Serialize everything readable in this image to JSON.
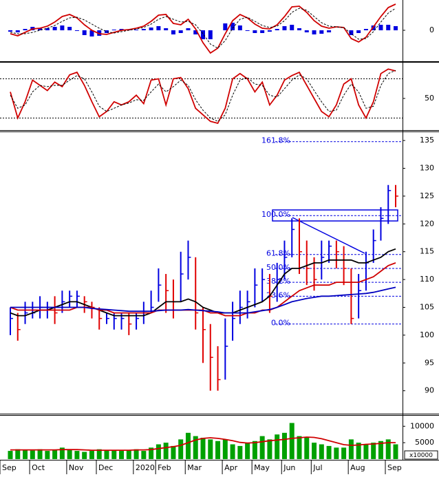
{
  "chart_data": [
    {
      "type": "macd",
      "ylim": [
        -4.4,
        4.4
      ],
      "yticks": [
        0
      ],
      "series": [
        {
          "role": "line",
          "color": "#d00000",
          "style": "solid",
          "values": [
            -0.5,
            -0.8,
            -0.3,
            0.2,
            0.3,
            0.6,
            1.2,
            2.0,
            2.3,
            1.8,
            0.8,
            0.0,
            -0.5,
            -0.6,
            -0.3,
            0.0,
            0.1,
            0.3,
            0.6,
            1.3,
            2.2,
            2.3,
            1.0,
            0.8,
            1.6,
            0.2,
            -1.8,
            -3.3,
            -2.6,
            -0.5,
            1.4,
            2.3,
            1.8,
            0.9,
            0.3,
            0.2,
            0.8,
            2.0,
            3.4,
            3.5,
            2.6,
            1.4,
            0.6,
            0.3,
            0.5,
            0.4,
            -1.2,
            -1.7,
            -1.0,
            0.5,
            2.0,
            3.3,
            3.8
          ]
        },
        {
          "role": "line",
          "color": "#000000",
          "style": "dashed",
          "values": [
            -0.3,
            -0.5,
            -0.5,
            -0.3,
            0.0,
            0.3,
            0.7,
            1.3,
            1.8,
            1.9,
            1.5,
            0.9,
            0.3,
            -0.2,
            -0.4,
            -0.2,
            0.0,
            0.2,
            0.4,
            0.9,
            1.6,
            2.0,
            1.6,
            1.2,
            1.3,
            0.8,
            -0.5,
            -2.0,
            -2.6,
            -1.5,
            0.3,
            1.6,
            1.9,
            1.3,
            0.7,
            0.4,
            0.6,
            1.4,
            2.6,
            3.2,
            2.9,
            2.0,
            1.1,
            0.6,
            0.5,
            0.4,
            -0.5,
            -1.3,
            -1.2,
            -0.2,
            1.2,
            2.5,
            3.2
          ]
        },
        {
          "role": "bar",
          "color": "#0000e0",
          "style": "solid",
          "values": [
            -0.2,
            -0.3,
            0.2,
            0.5,
            0.3,
            0.3,
            0.5,
            0.7,
            0.5,
            -0.1,
            -0.7,
            -0.9,
            -0.8,
            -0.4,
            0.1,
            0.2,
            0.1,
            0.1,
            0.2,
            0.4,
            0.6,
            0.3,
            -0.6,
            -0.4,
            0.3,
            -0.6,
            -1.3,
            -1.3,
            0.0,
            1.0,
            1.1,
            0.7,
            -0.1,
            -0.4,
            -0.4,
            -0.2,
            0.2,
            0.6,
            0.8,
            0.3,
            -0.3,
            -0.6,
            -0.5,
            -0.3,
            0.0,
            0.0,
            -0.7,
            -0.4,
            0.2,
            0.7,
            0.8,
            0.8,
            0.6
          ]
        }
      ]
    },
    {
      "type": "stochastic",
      "ylim": [
        3.7,
        103.7
      ],
      "yticks": [
        50
      ],
      "levels": [
        20,
        80
      ],
      "series": [
        {
          "role": "line",
          "color": "#d00000",
          "style": "solid",
          "values": [
            60,
            20,
            45,
            78,
            70,
            62,
            75,
            68,
            86,
            90,
            70,
            45,
            22,
            30,
            45,
            40,
            45,
            55,
            42,
            78,
            80,
            40,
            80,
            82,
            65,
            35,
            25,
            15,
            12,
            35,
            80,
            88,
            80,
            60,
            75,
            40,
            55,
            78,
            85,
            90,
            70,
            50,
            30,
            22,
            40,
            72,
            80,
            40,
            20,
            45,
            88,
            95,
            92
          ]
        },
        {
          "role": "line",
          "color": "#000000",
          "style": "dashed",
          "values": [
            55,
            35,
            40,
            60,
            70,
            68,
            70,
            70,
            78,
            85,
            80,
            60,
            38,
            30,
            35,
            40,
            43,
            48,
            47,
            60,
            72,
            60,
            68,
            78,
            70,
            48,
            32,
            20,
            15,
            25,
            55,
            78,
            82,
            72,
            70,
            55,
            52,
            65,
            78,
            86,
            80,
            62,
            45,
            30,
            32,
            55,
            72,
            60,
            35,
            38,
            70,
            88,
            93
          ]
        }
      ]
    },
    {
      "type": "ohlc",
      "ylim": [
        86,
        136.5
      ],
      "yticks": [
        90,
        95,
        100,
        105,
        110,
        115,
        120,
        125,
        130,
        135
      ],
      "up_color": "#0000e0",
      "down_color": "#e00000",
      "high": [
        105,
        104,
        106,
        106,
        107,
        106,
        107,
        108,
        108,
        108,
        107,
        106,
        105,
        104,
        104,
        104,
        104,
        104,
        106,
        108,
        112,
        111,
        110,
        115,
        117,
        114,
        105,
        102,
        98,
        103,
        106,
        108,
        108,
        112,
        112,
        111,
        113,
        117,
        121,
        121,
        117,
        114,
        117,
        117,
        117,
        116,
        112,
        111,
        115,
        119,
        123,
        127,
        127
      ],
      "low": [
        100,
        99,
        102,
        103,
        103,
        103,
        102,
        104,
        105,
        105,
        104,
        103,
        101,
        102,
        101,
        101,
        100,
        101,
        102,
        104,
        106,
        104,
        103,
        106,
        110,
        101,
        95,
        90,
        90,
        92,
        99,
        102,
        103,
        105,
        106,
        104,
        106,
        110,
        114,
        111,
        109,
        108,
        110,
        113,
        112,
        109,
        102,
        103,
        108,
        113,
        117,
        120,
        123
      ],
      "close": [
        103,
        101,
        104,
        104,
        105,
        105,
        104,
        106,
        107,
        107,
        106,
        105,
        103,
        103,
        103,
        103,
        102,
        103,
        104,
        105,
        109,
        108,
        106,
        111,
        114,
        104,
        101,
        96,
        92,
        98,
        103,
        105,
        106,
        109,
        110,
        107,
        110,
        114,
        119,
        115,
        112,
        110,
        114,
        116,
        115,
        112,
        103,
        108,
        113,
        117,
        121,
        126,
        125
      ],
      "series": [
        {
          "role": "line",
          "color": "#000000",
          "style": "solid",
          "values": [
            104,
            103.5,
            103.5,
            104,
            104.5,
            104.5,
            105,
            105.5,
            106,
            106,
            105.5,
            105,
            104.5,
            104,
            103.5,
            103.5,
            103.5,
            103.5,
            103.5,
            104,
            105,
            106,
            106,
            106,
            106.5,
            106,
            105,
            104.5,
            104,
            104,
            104,
            104.5,
            105,
            105.5,
            106,
            107,
            109,
            111,
            112,
            112,
            112.5,
            113,
            113,
            113.5,
            113.5,
            113.5,
            113.5,
            113,
            113,
            113.5,
            114,
            115,
            115.5
          ]
        },
        {
          "role": "line",
          "color": "#d00000",
          "style": "solid",
          "values": [
            105,
            104.5,
            104.5,
            104.5,
            104.5,
            104.5,
            104.5,
            104.5,
            104.5,
            105,
            105,
            105,
            104.5,
            104.5,
            104,
            104,
            104,
            104,
            104,
            104,
            104.5,
            104.5,
            104.5,
            104.5,
            104.5,
            104.5,
            104.5,
            104,
            104,
            103.5,
            103.5,
            103.5,
            104,
            104,
            104.5,
            104.5,
            105,
            106,
            107,
            108,
            108.5,
            109,
            109,
            109,
            109.5,
            109.5,
            109.5,
            109.5,
            110,
            110.5,
            111.5,
            112.5,
            113
          ]
        },
        {
          "role": "line",
          "color": "#0000c0",
          "style": "solid",
          "values": [
            105,
            105,
            105,
            105,
            105,
            105,
            105,
            105,
            105,
            105,
            105,
            104.8,
            104.7,
            104.6,
            104.5,
            104.4,
            104.3,
            104.3,
            104.3,
            104.3,
            104.4,
            104.5,
            104.5,
            104.5,
            104.6,
            104.5,
            104.4,
            104.3,
            104.2,
            104,
            104,
            104,
            104,
            104.2,
            104.4,
            104.6,
            105,
            105.5,
            106,
            106.3,
            106.6,
            106.8,
            107,
            107,
            107.1,
            107.2,
            107.3,
            107.4,
            107.5,
            107.7,
            108,
            108.3,
            108.6
          ]
        }
      ],
      "fib_levels": [
        {
          "label": "161.8%",
          "value": 134.8
        },
        {
          "label": "100.0%",
          "value": 121.5
        },
        {
          "label": "61.8%",
          "value": 114.5
        },
        {
          "label": "50.0%",
          "value": 112
        },
        {
          "label": "38.2%",
          "value": 109.5
        },
        {
          "label": "23.6%",
          "value": 107
        },
        {
          "label": "0.0%",
          "value": 102
        }
      ]
    },
    {
      "type": "volume",
      "ylim": [
        0,
        13200
      ],
      "yticks": [
        5000,
        10000
      ],
      "unit_label": "x10000",
      "categories": [
        "Sep",
        null,
        null,
        null,
        "Oct",
        null,
        null,
        null,
        null,
        "Nov",
        null,
        null,
        null,
        "Dec",
        null,
        null,
        null,
        null,
        "2020",
        null,
        null,
        "Feb",
        null,
        null,
        null,
        "Mar",
        null,
        null,
        null,
        null,
        "Apr",
        null,
        null,
        null,
        "May",
        null,
        null,
        null,
        "Jun",
        null,
        null,
        null,
        "Jul",
        null,
        null,
        null,
        null,
        "Aug",
        null,
        null,
        null,
        null,
        "Sep"
      ],
      "series": [
        {
          "role": "bar",
          "color": "#00a000",
          "style": "solid",
          "values": [
            2500,
            3000,
            2800,
            2600,
            3000,
            2500,
            2800,
            3500,
            3000,
            2500,
            2200,
            2500,
            3000,
            2800,
            2600,
            2500,
            2800,
            3000,
            2500,
            3500,
            4500,
            5000,
            4000,
            6000,
            8000,
            7000,
            6500,
            6000,
            5500,
            6000,
            4500,
            4000,
            5000,
            5500,
            7000,
            6000,
            7500,
            8000,
            11000,
            7000,
            6500,
            5000,
            4500,
            4000,
            3500,
            3500,
            6000,
            5000,
            4500,
            5000,
            5500,
            6000,
            4500
          ]
        },
        {
          "role": "line",
          "color": "#d00000",
          "style": "solid",
          "values": [
            2800,
            2800,
            2800,
            2800,
            2800,
            2800,
            2800,
            2900,
            2900,
            2900,
            2800,
            2700,
            2700,
            2700,
            2700,
            2700,
            2700,
            2800,
            2800,
            2900,
            3200,
            3500,
            3800,
            4200,
            5000,
            5800,
            6300,
            6500,
            6300,
            6000,
            5600,
            5100,
            4900,
            5000,
            5300,
            5600,
            5800,
            6000,
            6300,
            6500,
            6700,
            6600,
            6200,
            5600,
            5000,
            4400,
            4200,
            4300,
            4500,
            4600,
            4800,
            5000,
            5000
          ]
        }
      ]
    }
  ]
}
